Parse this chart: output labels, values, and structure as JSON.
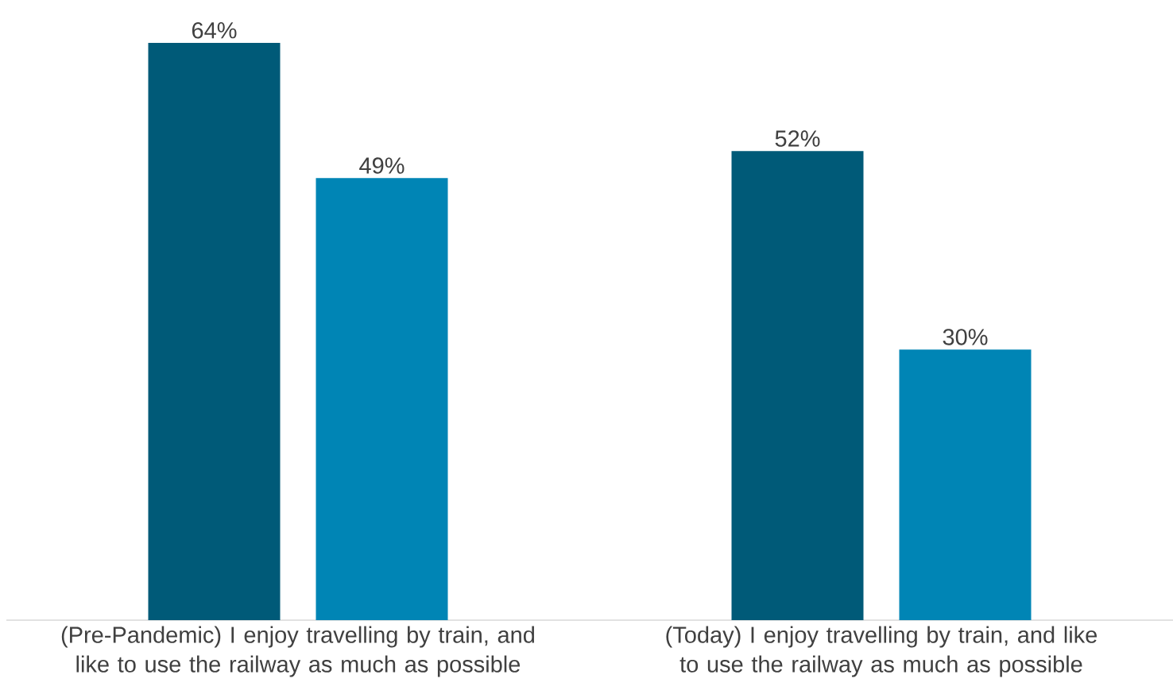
{
  "chart_data": {
    "type": "bar",
    "categories": [
      "(Pre-Pandemic) I enjoy travelling by train, and like to use the railway as much as possible",
      "(Today) I enjoy travelling by train, and like to use the railway as much as possible"
    ],
    "series": [
      {
        "color": "#005a78",
        "values": [
          64,
          52
        ],
        "value_labels": [
          "64%",
          "52%"
        ]
      },
      {
        "color": "#0085b5",
        "values": [
          49,
          30
        ],
        "value_labels": [
          "49%",
          "30%"
        ]
      }
    ]
  }
}
